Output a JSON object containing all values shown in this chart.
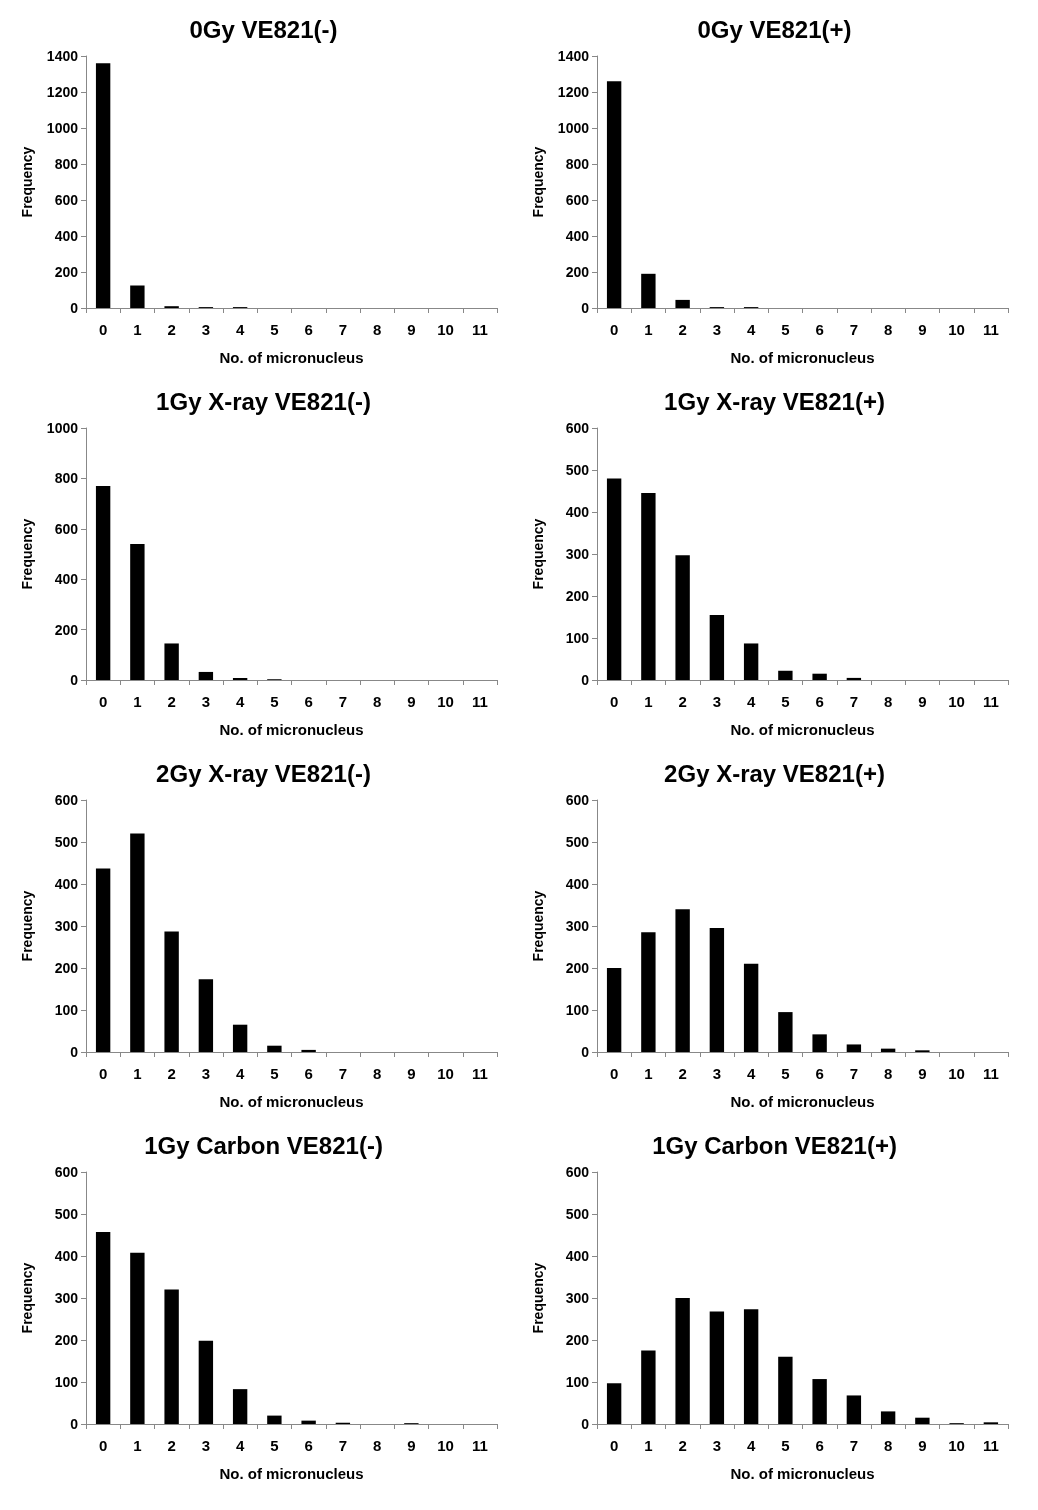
{
  "chart_data": [
    {
      "type": "bar",
      "title": "0Gy VE821(-)",
      "xlabel": "No. of micronucleus",
      "ylabel": "Frequency",
      "categories": [
        "0",
        "1",
        "2",
        "3",
        "4",
        "5",
        "6",
        "7",
        "8",
        "9",
        "10",
        "11"
      ],
      "values": [
        1360,
        125,
        10,
        5,
        5,
        0,
        0,
        0,
        0,
        0,
        0,
        0
      ],
      "color": "#000000",
      "ylim": [
        0,
        1400
      ],
      "yticks": [
        0,
        200,
        400,
        600,
        800,
        1000,
        1200,
        1400
      ],
      "grid": false
    },
    {
      "type": "bar",
      "title": "0Gy VE821(+)",
      "xlabel": "No. of micronucleus",
      "ylabel": "Frequency",
      "categories": [
        "0",
        "1",
        "2",
        "3",
        "4",
        "5",
        "6",
        "7",
        "8",
        "9",
        "10",
        "11"
      ],
      "values": [
        1260,
        190,
        45,
        5,
        5,
        0,
        0,
        0,
        0,
        0,
        0,
        0
      ],
      "color": "#000000",
      "ylim": [
        0,
        1400
      ],
      "yticks": [
        0,
        200,
        400,
        600,
        800,
        1000,
        1200,
        1400
      ],
      "grid": false
    },
    {
      "type": "bar",
      "title": "1Gy X-ray VE821(-)",
      "xlabel": "No. of micronucleus",
      "ylabel": "Frequency",
      "categories": [
        "0",
        "1",
        "2",
        "3",
        "4",
        "5",
        "6",
        "7",
        "8",
        "9",
        "10",
        "11"
      ],
      "values": [
        770,
        540,
        145,
        32,
        8,
        3,
        0,
        0,
        0,
        0,
        0,
        0
      ],
      "color": "#000000",
      "ylim": [
        0,
        1000
      ],
      "yticks": [
        0,
        200,
        400,
        600,
        800,
        1000
      ],
      "grid": false
    },
    {
      "type": "bar",
      "title": "1Gy X-ray VE821(+)",
      "xlabel": "No. of micronucleus",
      "ylabel": "Frequency",
      "categories": [
        "0",
        "1",
        "2",
        "3",
        "4",
        "5",
        "6",
        "7",
        "8",
        "9",
        "10",
        "11"
      ],
      "values": [
        480,
        445,
        297,
        155,
        87,
        22,
        15,
        5,
        0,
        0,
        0,
        0
      ],
      "color": "#000000",
      "ylim": [
        0,
        600
      ],
      "yticks": [
        0,
        100,
        200,
        300,
        400,
        500,
        600
      ],
      "grid": false
    },
    {
      "type": "bar",
      "title": "2Gy X-ray VE821(-)",
      "xlabel": "No. of micronucleus",
      "ylabel": "Frequency",
      "categories": [
        "0",
        "1",
        "2",
        "3",
        "4",
        "5",
        "6",
        "7",
        "8",
        "9",
        "10",
        "11"
      ],
      "values": [
        437,
        520,
        287,
        173,
        65,
        15,
        5,
        0,
        0,
        0,
        0,
        0
      ],
      "color": "#000000",
      "ylim": [
        0,
        600
      ],
      "yticks": [
        0,
        100,
        200,
        300,
        400,
        500,
        600
      ],
      "grid": false
    },
    {
      "type": "bar",
      "title": "2Gy X-ray VE821(+)",
      "xlabel": "No. of micronucleus",
      "ylabel": "Frequency",
      "categories": [
        "0",
        "1",
        "2",
        "3",
        "4",
        "5",
        "6",
        "7",
        "8",
        "9",
        "10",
        "11"
      ],
      "values": [
        200,
        285,
        340,
        295,
        210,
        95,
        42,
        18,
        8,
        4,
        0,
        0
      ],
      "color": "#000000",
      "ylim": [
        0,
        600
      ],
      "yticks": [
        0,
        100,
        200,
        300,
        400,
        500,
        600
      ],
      "grid": false
    },
    {
      "type": "bar",
      "title": "1Gy Carbon VE821(-)",
      "xlabel": "No. of micronucleus",
      "ylabel": "Frequency",
      "categories": [
        "0",
        "1",
        "2",
        "3",
        "4",
        "5",
        "6",
        "7",
        "8",
        "9",
        "10",
        "11"
      ],
      "values": [
        457,
        408,
        320,
        198,
        83,
        20,
        8,
        3,
        0,
        2,
        0,
        0
      ],
      "color": "#000000",
      "ylim": [
        0,
        600
      ],
      "yticks": [
        0,
        100,
        200,
        300,
        400,
        500,
        600
      ],
      "grid": false
    },
    {
      "type": "bar",
      "title": "1Gy Carbon VE821(+)",
      "xlabel": "No. of micronucleus",
      "ylabel": "Frequency",
      "categories": [
        "0",
        "1",
        "2",
        "3",
        "4",
        "5",
        "6",
        "7",
        "8",
        "9",
        "10",
        "11"
      ],
      "values": [
        97,
        175,
        300,
        268,
        273,
        160,
        107,
        68,
        30,
        15,
        2,
        4
      ],
      "color": "#000000",
      "ylim": [
        0,
        600
      ],
      "yticks": [
        0,
        100,
        200,
        300,
        400,
        500,
        600
      ],
      "grid": false
    }
  ]
}
